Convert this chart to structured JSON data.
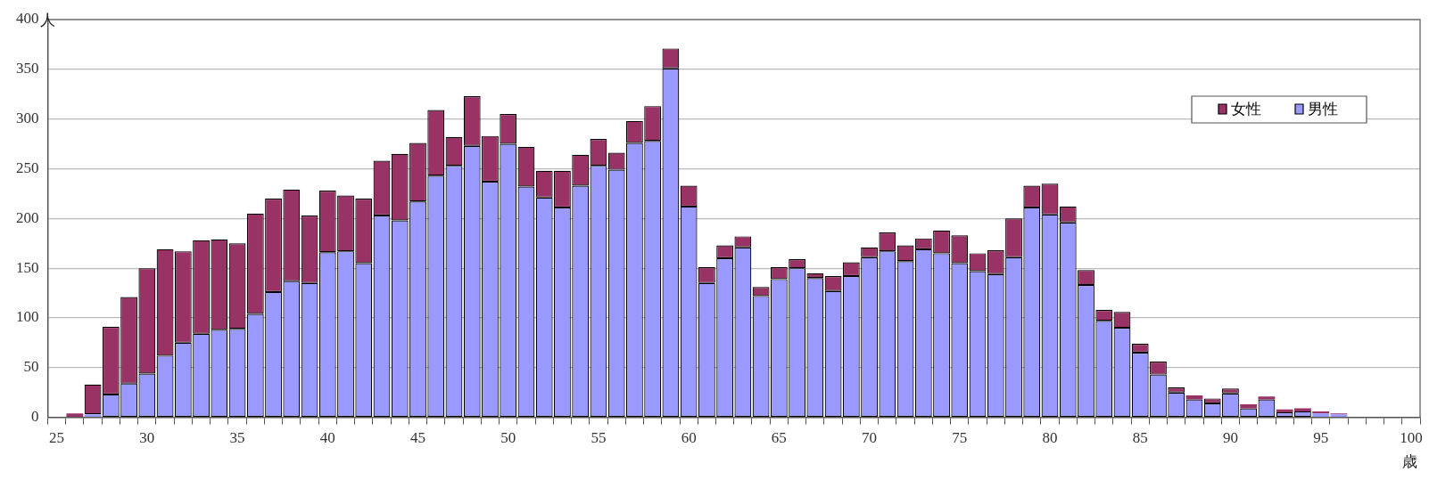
{
  "chart_data": {
    "type": "bar",
    "stacked": true,
    "xlabel": "歳",
    "ylabel": "人",
    "categories": [
      "25",
      null,
      null,
      null,
      null,
      "30",
      null,
      null,
      null,
      null,
      "35",
      null,
      null,
      null,
      null,
      "40",
      null,
      null,
      null,
      null,
      "45",
      null,
      null,
      null,
      null,
      "50",
      null,
      null,
      null,
      null,
      "55",
      null,
      null,
      null,
      null,
      "60",
      null,
      null,
      null,
      null,
      "65",
      null,
      null,
      null,
      null,
      "70",
      null,
      null,
      null,
      null,
      "75",
      null,
      null,
      null,
      null,
      "80",
      null,
      null,
      null,
      null,
      "85",
      null,
      null,
      null,
      null,
      "90",
      null,
      null,
      null,
      null,
      "95",
      null,
      null,
      null,
      null,
      "100"
    ],
    "series": [
      {
        "name": "男性",
        "color": "#9999ff",
        "values": [
          0,
          0,
          3,
          23,
          34,
          44,
          62,
          75,
          84,
          88,
          89,
          104,
          126,
          137,
          135,
          166,
          167,
          155,
          203,
          198,
          217,
          243,
          253,
          273,
          237,
          275,
          232,
          221,
          211,
          233,
          253,
          249,
          276,
          278,
          351,
          212,
          135,
          160,
          171,
          122,
          139,
          150,
          140,
          127,
          142,
          161,
          167,
          157,
          169,
          165,
          155,
          147,
          144,
          161,
          211,
          204,
          196,
          133,
          97,
          90,
          65,
          43,
          25,
          18,
          14,
          24,
          9,
          18,
          5,
          6,
          4,
          3,
          0,
          0,
          0,
          0
        ]
      },
      {
        "name": "女性",
        "color": "#993366",
        "values": [
          0,
          4,
          30,
          68,
          87,
          106,
          107,
          92,
          94,
          91,
          86,
          101,
          94,
          92,
          68,
          62,
          56,
          65,
          55,
          67,
          59,
          66,
          29,
          50,
          46,
          30,
          40,
          27,
          37,
          31,
          27,
          17,
          22,
          35,
          20,
          21,
          16,
          13,
          11,
          9,
          12,
          9,
          5,
          15,
          14,
          10,
          19,
          16,
          11,
          23,
          28,
          18,
          24,
          39,
          22,
          31,
          16,
          15,
          11,
          16,
          9,
          13,
          5,
          4,
          5,
          5,
          4,
          3,
          3,
          3,
          2,
          1,
          0,
          0,
          0,
          0
        ]
      }
    ],
    "ylim": [
      0,
      400
    ],
    "yticks": [
      0,
      50,
      100,
      150,
      200,
      250,
      300,
      350,
      400
    ],
    "grid": "y",
    "legend": "top right"
  }
}
